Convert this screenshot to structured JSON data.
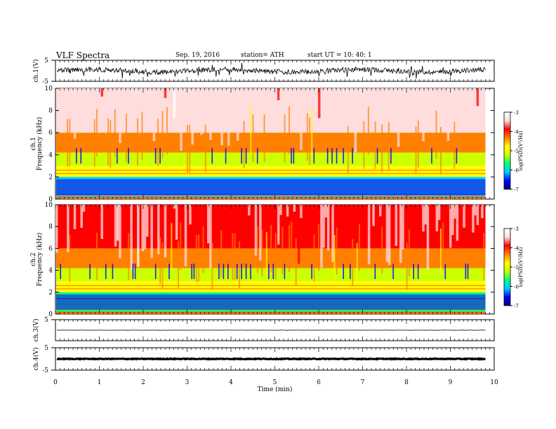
{
  "header": {
    "title": "VLF  Spectra",
    "date": "Sep. 19, 2016",
    "station": "station= ATH",
    "start": "start  UT  =    10: 40: 1"
  },
  "chart_data": [
    {
      "type": "line",
      "panel": "ch1-waveform",
      "ylabel": "ch.1(V)",
      "ylim": [
        -5,
        5
      ],
      "yticks": [
        "5",
        "-5"
      ],
      "xlim": [
        0,
        10
      ],
      "baseline": 0,
      "trace_color": "#000000"
    },
    {
      "type": "heatmap",
      "panel": "ch1-spectrogram",
      "ylabel": "ch.1\nFrequency  (kHz)",
      "ylim": [
        0,
        10
      ],
      "yticks": [
        0,
        2,
        4,
        6,
        8,
        10
      ],
      "xlim": [
        0,
        9.8
      ],
      "colorbar": {
        "label": "log(PSD)(V²/Hz)",
        "range": [
          -7,
          -3
        ],
        "ticks": [
          "-3",
          "-4",
          "-5",
          "-6",
          "-7"
        ],
        "colors": [
          "#000080",
          "#0000ff",
          "#00ccff",
          "#00ff80",
          "#ccff00",
          "#ffff00",
          "#ff8000",
          "#ff0000",
          "#ffdddd",
          "#ffffff"
        ]
      },
      "bands": [
        {
          "from": 0,
          "to": 2,
          "level": -6.0
        },
        {
          "from": 2,
          "to": 3,
          "level": -4.7
        },
        {
          "from": 3,
          "to": 4.2,
          "level": -5.3
        },
        {
          "from": 4.2,
          "to": 6,
          "level": -4.4
        },
        {
          "from": 6,
          "to": 10,
          "level": -3.6
        }
      ]
    },
    {
      "type": "heatmap",
      "panel": "ch2-spectrogram",
      "ylabel": "ch.2\nFrequency  (kHz)",
      "ylim": [
        0,
        10
      ],
      "yticks": [
        0,
        2,
        4,
        6,
        8,
        10
      ],
      "xlim": [
        0,
        9.8
      ],
      "colorbar": {
        "label": "log(PSD)(V²/Hz)",
        "range": [
          -7,
          -3
        ],
        "ticks": [
          "-3",
          "-4",
          "-5",
          "-6",
          "-7"
        ],
        "colors": [
          "#000080",
          "#0000ff",
          "#00ccff",
          "#00ff80",
          "#ccff00",
          "#ffff00",
          "#ff8000",
          "#ff0000",
          "#ffdddd",
          "#ffffff"
        ]
      },
      "bands": [
        {
          "from": 0,
          "to": 2,
          "level": -5.8
        },
        {
          "from": 2,
          "to": 3,
          "level": -4.8
        },
        {
          "from": 3,
          "to": 4.2,
          "level": -5.4
        },
        {
          "from": 4.2,
          "to": 6,
          "level": -4.5
        },
        {
          "from": 6,
          "to": 10,
          "level": -3.9
        }
      ]
    },
    {
      "type": "line",
      "panel": "ch3-waveform",
      "ylabel": "ch.3(V)",
      "ylim": [
        -5,
        5
      ],
      "yticks": [
        "5"
      ],
      "xlim": [
        0,
        10
      ],
      "baseline": 0,
      "trace_color": "#000000"
    },
    {
      "type": "line",
      "panel": "ch4-waveform",
      "ylabel": "ch.4(V)",
      "ylim": [
        -5,
        5
      ],
      "yticks": [
        "5",
        "-5"
      ],
      "xlim": [
        0,
        10
      ],
      "baseline": 0,
      "trace_color": "#000000"
    }
  ],
  "xaxis": {
    "label": "Time  (min)",
    "range": [
      0,
      10
    ],
    "ticks": [
      "0",
      "1",
      "2",
      "3",
      "4",
      "5",
      "6",
      "7",
      "8",
      "9",
      "10"
    ]
  }
}
